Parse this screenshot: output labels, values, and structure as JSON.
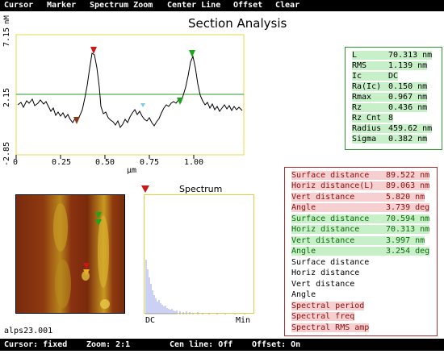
{
  "menu": [
    "Cursor",
    "Marker",
    "Spectrum Zoom",
    "Center Line",
    "Offset",
    "Clear"
  ],
  "title": "Section Analysis",
  "profile": {
    "y_unit": "nM",
    "y_ticks": [
      "7.15",
      "2.15",
      "-2.85"
    ],
    "x_unit": "μm",
    "x_ticks": [
      "0",
      "0.25",
      "0.50",
      "0.75",
      "1.00"
    ]
  },
  "stats": [
    {
      "label": "L",
      "value": "70.313 nm"
    },
    {
      "label": "RMS",
      "value": "1.139 nm"
    },
    {
      "label": "Ic",
      "value": "DC"
    },
    {
      "label": "Ra(Ic)",
      "value": "0.150 nm"
    },
    {
      "label": "Rmax",
      "value": "0.967 nm"
    },
    {
      "label": "Rz",
      "value": "0.436 nm"
    },
    {
      "label": "Rz Cnt",
      "value": "8"
    },
    {
      "label": "Radius",
      "value": "459.62 nm"
    },
    {
      "label": "Sigma",
      "value": "0.382 nm"
    }
  ],
  "measurements": [
    {
      "label": "Surface distance",
      "value": "89.522 nm",
      "style": "red"
    },
    {
      "label": "Horiz distance(L)",
      "value": "89.063 nm",
      "style": "red"
    },
    {
      "label": "Vert distance",
      "value": "5.820 nm",
      "style": "red"
    },
    {
      "label": "Angle",
      "value": "3.739 deg",
      "style": "red"
    },
    {
      "label": "Surface distance",
      "value": "70.594 nm",
      "style": "green"
    },
    {
      "label": "Horiz distance",
      "value": "70.313 nm",
      "style": "green"
    },
    {
      "label": "Vert distance",
      "value": "3.997 nm",
      "style": "green"
    },
    {
      "label": "Angle",
      "value": "3.254 deg",
      "style": "green"
    },
    {
      "label": "Surface distance",
      "value": "",
      "style": "plain"
    },
    {
      "label": "Horiz distance",
      "value": "",
      "style": "plain"
    },
    {
      "label": "Vert distance",
      "value": "",
      "style": "plain"
    },
    {
      "label": "Angle",
      "value": "",
      "style": "plain"
    },
    {
      "label": "Spectral period",
      "value": "",
      "style": "red"
    },
    {
      "label": "Spectral freq",
      "value": "",
      "style": "red"
    },
    {
      "label": "Spectral RMS amp",
      "value": "",
      "style": "red"
    }
  ],
  "spectrum": {
    "title": "Spectrum",
    "left_label": "DC",
    "right_label": "Min"
  },
  "filename": "alps23.001",
  "status": {
    "cursor": "Cursor: fixed",
    "zoom": "Zoom: 2:1",
    "cen_line": "Cen line: Off",
    "offset": "Offset: On"
  },
  "colors": {
    "red_marker": "#c81818",
    "green_marker": "#1aa81a",
    "frame_yellow": "#e6d84a",
    "profile_line": "#000000"
  }
}
